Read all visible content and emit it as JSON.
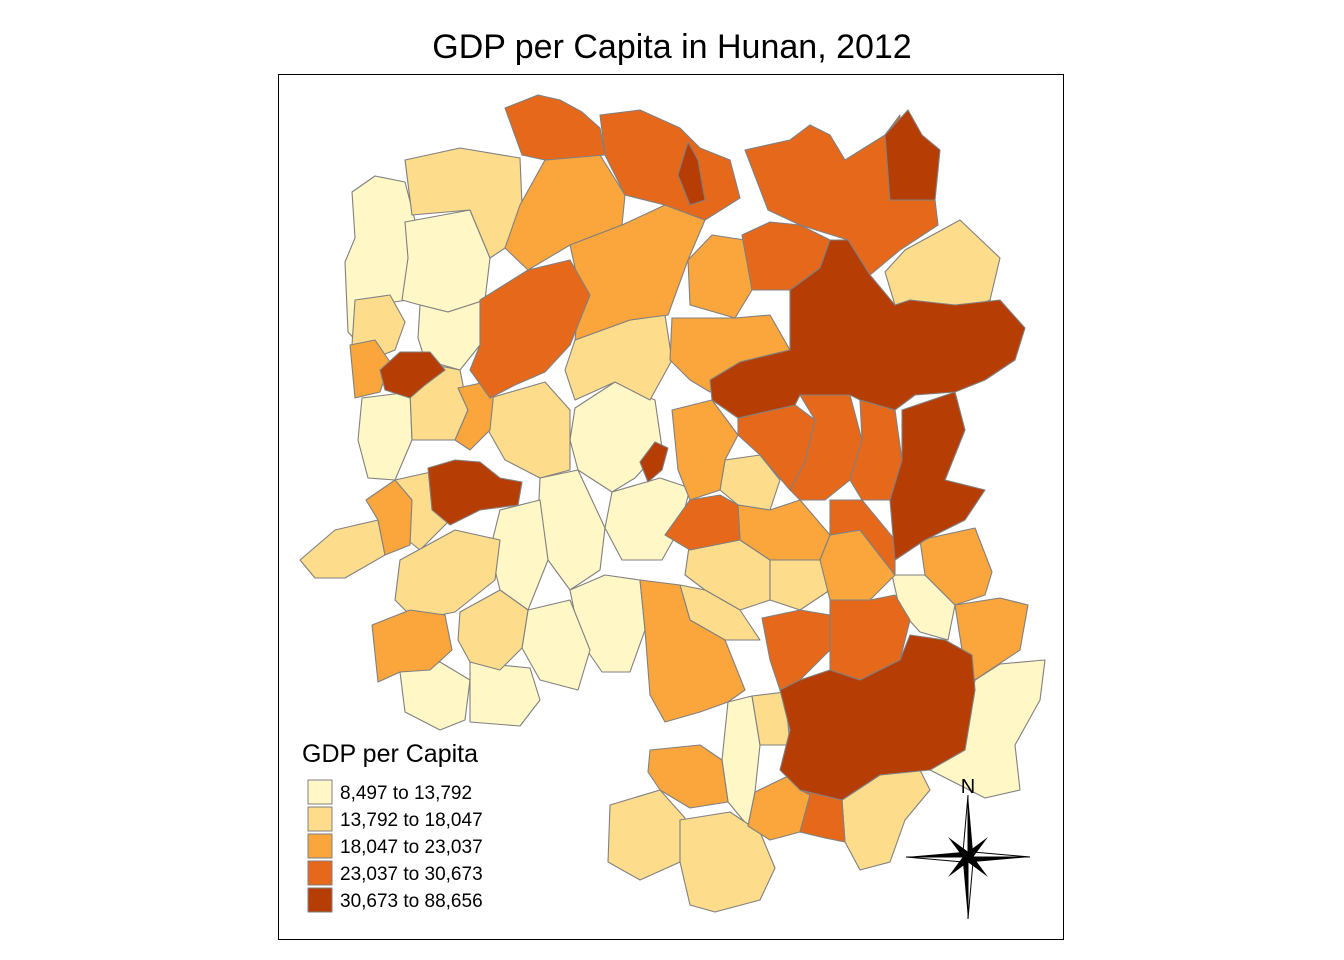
{
  "title": "GDP per Capita in Hunan, 2012",
  "legend": {
    "title": "GDP per Capita",
    "classes": [
      {
        "label": "8,497 to 13,792",
        "color": "#fff7c6"
      },
      {
        "label": "13,792 to 18,047",
        "color": "#fddc8b"
      },
      {
        "label": "18,047 to 23,037",
        "color": "#faa63c"
      },
      {
        "label": "23,037 to 30,673",
        "color": "#e6681b"
      },
      {
        "label": "30,673 to 88,656",
        "color": "#b63d04"
      }
    ]
  },
  "north_arrow": {
    "label": "N"
  },
  "colors": {
    "border": "#808080",
    "frame": "#000000"
  }
}
